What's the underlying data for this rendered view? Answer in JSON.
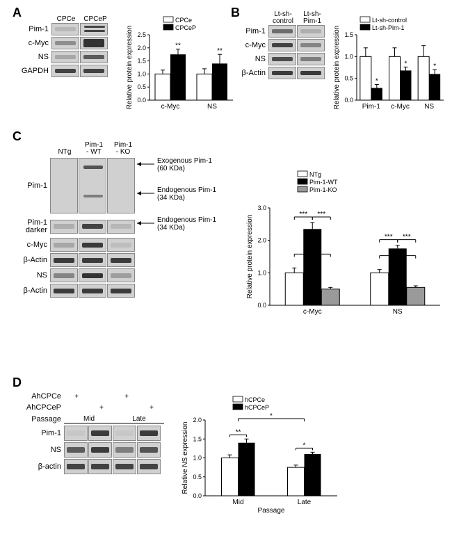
{
  "panelA": {
    "label": "A",
    "lanes": [
      "CPCe",
      "CPCeP"
    ],
    "blots": [
      {
        "name": "Pim-1",
        "bands": [
          {
            "intensity": 0.15
          },
          {
            "intensity": 0.85,
            "doublet": true
          }
        ]
      },
      {
        "name": "c-Myc",
        "bands": [
          {
            "intensity": 0.4
          },
          {
            "intensity": 0.95,
            "thick": true
          }
        ]
      },
      {
        "name": "NS",
        "bands": [
          {
            "intensity": 0.25
          },
          {
            "intensity": 0.7
          }
        ]
      },
      {
        "name": "GAPDH",
        "bands": [
          {
            "intensity": 0.85
          },
          {
            "intensity": 0.85
          }
        ]
      }
    ],
    "chart": {
      "legend": [
        {
          "label": "CPCe",
          "fill": "white"
        },
        {
          "label": "CPCeP",
          "fill": "black"
        }
      ],
      "ylabel": "Relative protein expression",
      "ylim": [
        0,
        2.5
      ],
      "ytick": 0.5,
      "groups": [
        "c-Myc",
        "NS"
      ],
      "data": [
        {
          "group": "c-Myc",
          "bars": [
            {
              "val": 1.0,
              "err": 0.15,
              "fill": "white"
            },
            {
              "val": 1.75,
              "err": 0.2,
              "fill": "black",
              "sig": "**"
            }
          ]
        },
        {
          "group": "NS",
          "bars": [
            {
              "val": 1.0,
              "err": 0.2,
              "fill": "white"
            },
            {
              "val": 1.4,
              "err": 0.35,
              "fill": "black",
              "sig": "**"
            }
          ]
        }
      ]
    }
  },
  "panelB": {
    "label": "B",
    "lanes": [
      "Lt-sh-\ncontrol",
      "Lt-sh-\nPim-1"
    ],
    "blots": [
      {
        "name": "Pim-1",
        "bands": [
          {
            "intensity": 0.6
          },
          {
            "intensity": 0.2
          }
        ]
      },
      {
        "name": "c-Myc",
        "bands": [
          {
            "intensity": 0.85
          },
          {
            "intensity": 0.45
          }
        ]
      },
      {
        "name": "NS",
        "bands": [
          {
            "intensity": 0.8
          },
          {
            "intensity": 0.5
          }
        ]
      },
      {
        "name": "β-Actin",
        "bands": [
          {
            "intensity": 0.9
          },
          {
            "intensity": 0.9
          }
        ]
      }
    ],
    "chart": {
      "legend": [
        {
          "label": "Lt-sh-control",
          "fill": "white"
        },
        {
          "label": "Lt-sh-Pim-1",
          "fill": "black"
        }
      ],
      "ylabel": "Relative protein expression",
      "ylim": [
        0,
        1.5
      ],
      "ytick": 0.5,
      "groups": [
        "Pim-1",
        "c-Myc",
        "NS"
      ],
      "data": [
        {
          "group": "Pim-1",
          "bars": [
            {
              "val": 1.0,
              "err": 0.2,
              "fill": "white"
            },
            {
              "val": 0.28,
              "err": 0.08,
              "fill": "black",
              "sig": "*"
            }
          ]
        },
        {
          "group": "c-Myc",
          "bars": [
            {
              "val": 1.0,
              "err": 0.2,
              "fill": "white"
            },
            {
              "val": 0.68,
              "err": 0.08,
              "fill": "black",
              "sig": "*"
            }
          ]
        },
        {
          "group": "NS",
          "bars": [
            {
              "val": 1.0,
              "err": 0.25,
              "fill": "white"
            },
            {
              "val": 0.6,
              "err": 0.1,
              "fill": "black",
              "sig": "*"
            }
          ]
        }
      ]
    }
  },
  "panelC": {
    "label": "C",
    "lanes": [
      "NTg",
      "Pim-1\n- WT",
      "Pim-1\n- KO"
    ],
    "blots": [
      {
        "name": "Pim-1",
        "tall": true
      },
      {
        "name": "Pim-1\ndarker"
      },
      {
        "name": "c-Myc"
      },
      {
        "name": "β-Actin"
      },
      {
        "name": "NS"
      },
      {
        "name": "β-Actin"
      }
    ],
    "arrows": [
      {
        "text": "Exogenous Pim-1\n(60 KDa)"
      },
      {
        "text": "Endogenous Pim-1\n(34 KDa)"
      },
      {
        "text": "Endogenous Pim-1\n(34 KDa)"
      }
    ],
    "chart": {
      "legend": [
        {
          "label": "NTg",
          "fill": "white"
        },
        {
          "label": "Pim-1-WT",
          "fill": "black"
        },
        {
          "label": "Pim-1-KO",
          "fill": "gray"
        }
      ],
      "ylabel": "Relative protein expression",
      "ylim": [
        0,
        3
      ],
      "ytick": 1,
      "groups": [
        "c-Myc",
        "NS"
      ],
      "data": [
        {
          "group": "c-Myc",
          "bars": [
            {
              "val": 1.0,
              "err": 0.15,
              "fill": "white"
            },
            {
              "val": 2.35,
              "err": 0.2,
              "fill": "black"
            },
            {
              "val": 0.5,
              "err": 0.05,
              "fill": "gray"
            }
          ],
          "brackets": [
            {
              "from": 0,
              "to": 1,
              "sig": "***"
            },
            {
              "from": 1,
              "to": 2,
              "sig": "***"
            },
            {
              "from": 0,
              "to": 2,
              "sig": "*",
              "high": true
            }
          ]
        },
        {
          "group": "NS",
          "bars": [
            {
              "val": 1.0,
              "err": 0.1,
              "fill": "white"
            },
            {
              "val": 1.75,
              "err": 0.1,
              "fill": "black"
            },
            {
              "val": 0.55,
              "err": 0.05,
              "fill": "gray"
            }
          ],
          "brackets": [
            {
              "from": 0,
              "to": 1,
              "sig": "***"
            },
            {
              "from": 1,
              "to": 2,
              "sig": "***"
            },
            {
              "from": 0,
              "to": 2,
              "sig": "*",
              "high": true
            }
          ]
        }
      ]
    }
  },
  "panelD": {
    "label": "D",
    "headers": [
      "AhCPCe",
      "AhCPCeP",
      "Passage"
    ],
    "passages": [
      "Mid",
      "Late"
    ],
    "plus": "+",
    "blots": [
      {
        "name": "Pim-1"
      },
      {
        "name": "NS"
      },
      {
        "name": "β-actin"
      }
    ],
    "chart": {
      "legend": [
        {
          "label": "hCPCe",
          "fill": "white"
        },
        {
          "label": "hCPCeP",
          "fill": "black"
        }
      ],
      "ylabel": "Relative NS expression",
      "ylim": [
        0,
        2.0
      ],
      "ytick": 0.5,
      "xlabel": "Passage",
      "groups": [
        "Mid",
        "Late"
      ],
      "data": [
        {
          "group": "Mid",
          "bars": [
            {
              "val": 1.0,
              "err": 0.08,
              "fill": "white"
            },
            {
              "val": 1.4,
              "err": 0.1,
              "fill": "black"
            }
          ],
          "sig": "**"
        },
        {
          "group": "Late",
          "bars": [
            {
              "val": 0.75,
              "err": 0.06,
              "fill": "white"
            },
            {
              "val": 1.1,
              "err": 0.05,
              "fill": "black"
            }
          ],
          "sig": "*"
        }
      ],
      "topBracket": {
        "sig": "*"
      }
    }
  }
}
